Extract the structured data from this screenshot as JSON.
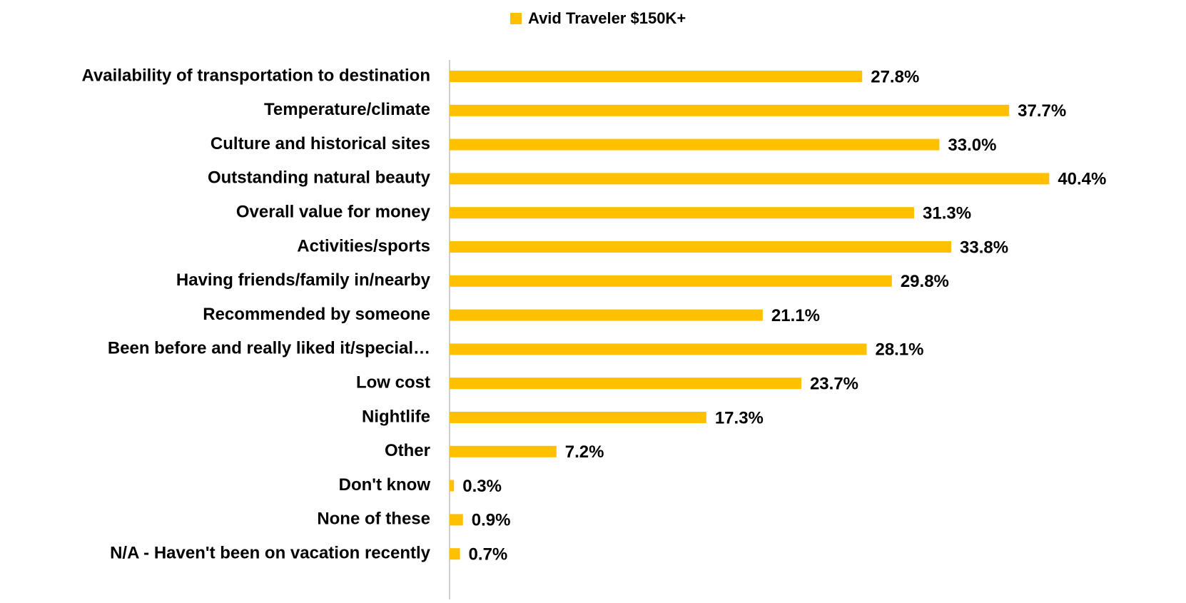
{
  "chart_data": {
    "type": "bar",
    "orientation": "horizontal",
    "categories": [
      "Availability of transportation to destination",
      "Temperature/climate",
      "Culture and historical sites",
      "Outstanding natural beauty",
      "Overall value for money",
      "Activities/sports",
      "Having friends/family in/nearby",
      "Recommended by someone",
      "Been before and really liked it/special…",
      "Low cost",
      "Nightlife",
      "Other",
      "Don't know",
      "None of these",
      "N/A - Haven't been on vacation recently"
    ],
    "series": [
      {
        "name": "Avid Traveler $150K+",
        "color": "#FFC000",
        "values": [
          27.8,
          37.7,
          33.0,
          40.4,
          31.3,
          33.8,
          29.8,
          21.1,
          28.1,
          23.7,
          17.3,
          7.2,
          0.3,
          0.9,
          0.7
        ],
        "value_labels": [
          "27.8%",
          "37.7%",
          "33.0%",
          "40.4%",
          "31.3%",
          "33.8%",
          "29.8%",
          "21.1%",
          "28.1%",
          "23.7%",
          "17.3%",
          "7.2%",
          "0.3%",
          "0.9%",
          "0.7%"
        ]
      }
    ],
    "xlim": [
      0,
      45
    ],
    "legend": "top"
  }
}
